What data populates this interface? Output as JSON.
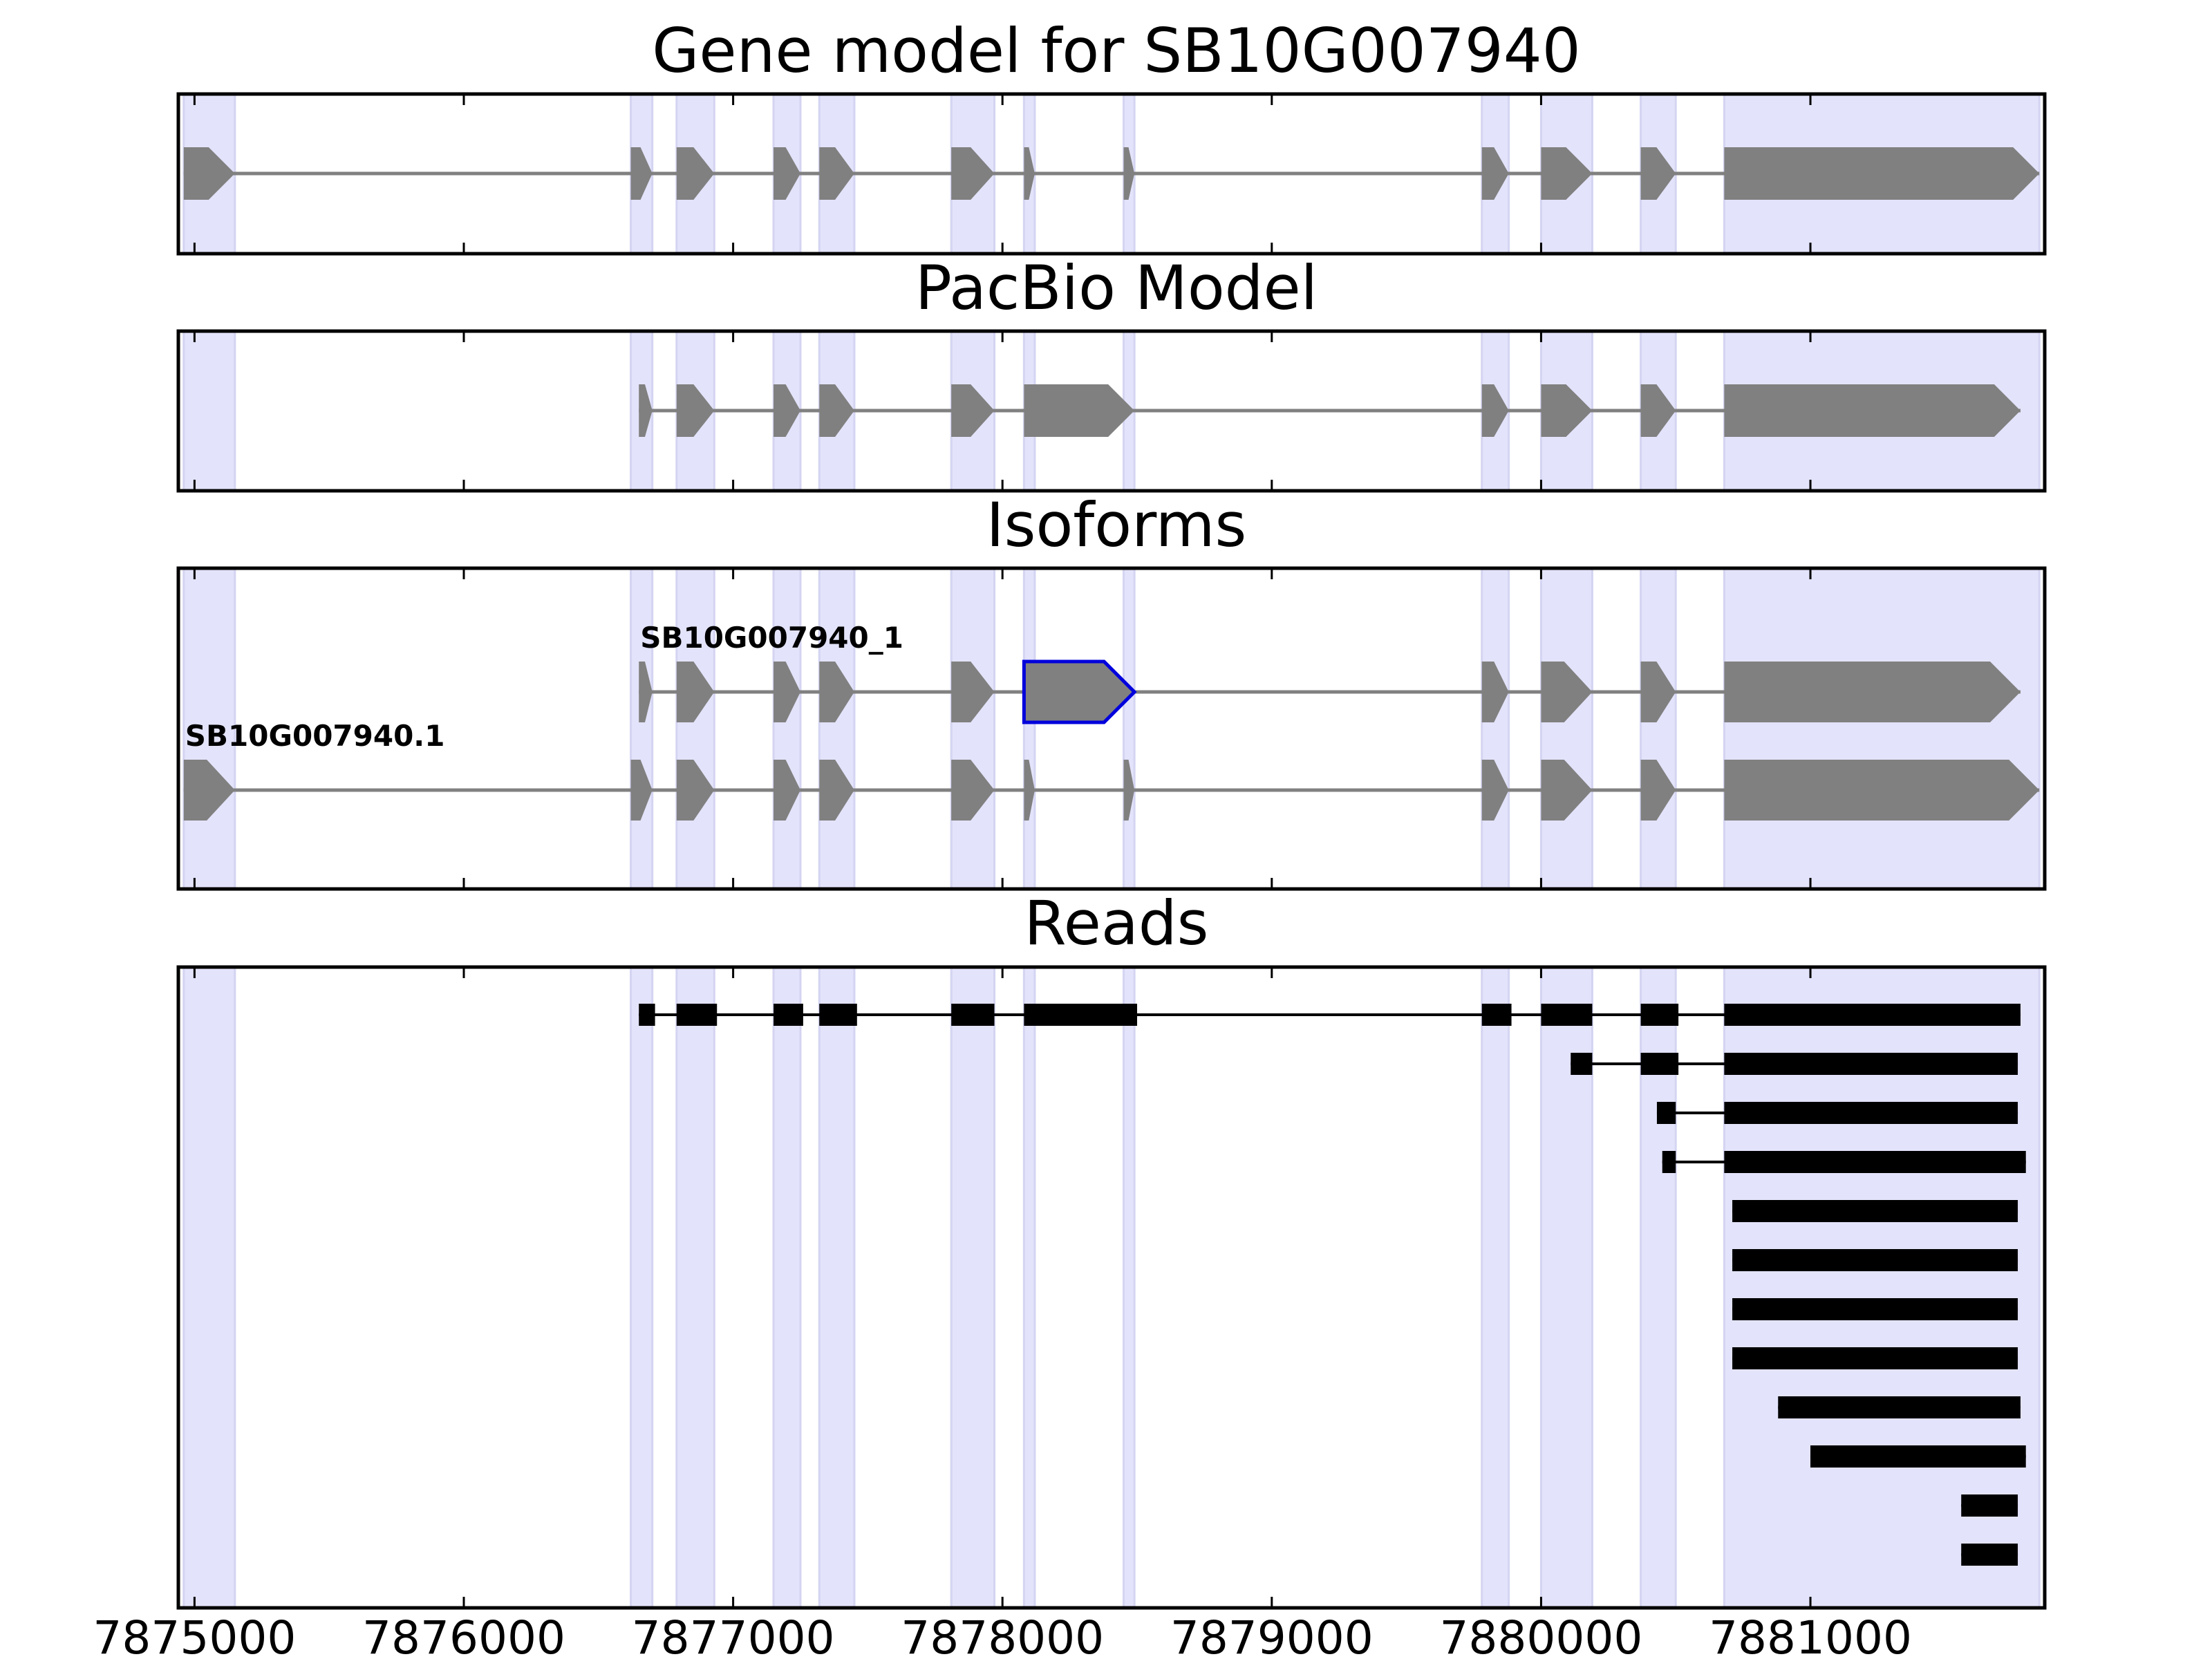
{
  "colors": {
    "exon_band": "#e3e3fb",
    "exon_band_edge": "#d4d4f2",
    "feature_fill": "#808080",
    "intron_line": "#808080",
    "read_fill": "#000000",
    "highlight_outline": "#0000dd",
    "frame": "#000000"
  },
  "chart_data": {
    "type": "gene-structure",
    "x_range": [
      7874940,
      7881870
    ],
    "x_ticks": [
      {
        "value": 7875000,
        "label": "7875000"
      },
      {
        "value": 7876000,
        "label": "7876000"
      },
      {
        "value": 7877000,
        "label": "7877000"
      },
      {
        "value": 7878000,
        "label": "7878000"
      },
      {
        "value": 7879000,
        "label": "7879000"
      },
      {
        "value": 7880000,
        "label": "7880000"
      },
      {
        "value": 7881000,
        "label": "7881000"
      }
    ],
    "exon_bands": [
      [
        7874960,
        7875150
      ],
      [
        7876620,
        7876700
      ],
      [
        7876790,
        7876930
      ],
      [
        7877150,
        7877250
      ],
      [
        7877320,
        7877450
      ],
      [
        7877810,
        7877970
      ],
      [
        7878080,
        7878120
      ],
      [
        7878450,
        7878490
      ],
      [
        7879780,
        7879880
      ],
      [
        7880000,
        7880190
      ],
      [
        7880370,
        7880500
      ],
      [
        7880680,
        7881850
      ]
    ],
    "panels": [
      {
        "title": "Gene model for SB10G007940",
        "kind": "gene",
        "strand": "+",
        "tracks": [
          {
            "label": "",
            "highlight_exon": null,
            "exons": [
              [
                7874960,
                7875150
              ],
              [
                7876620,
                7876700
              ],
              [
                7876790,
                7876930
              ],
              [
                7877150,
                7877250
              ],
              [
                7877320,
                7877450
              ],
              [
                7877810,
                7877970
              ],
              [
                7878080,
                7878120
              ],
              [
                7878450,
                7878490
              ],
              [
                7879780,
                7879880
              ],
              [
                7880000,
                7880190
              ],
              [
                7880370,
                7880500
              ],
              [
                7880680,
                7881850
              ]
            ]
          }
        ]
      },
      {
        "title": "PacBio Model",
        "kind": "gene",
        "strand": "+",
        "tracks": [
          {
            "label": "",
            "highlight_exon": null,
            "exons": [
              [
                7876650,
                7876700
              ],
              [
                7876790,
                7876930
              ],
              [
                7877150,
                7877250
              ],
              [
                7877320,
                7877450
              ],
              [
                7877810,
                7877970
              ],
              [
                7878080,
                7878490
              ],
              [
                7879780,
                7879880
              ],
              [
                7880000,
                7880190
              ],
              [
                7880370,
                7880500
              ],
              [
                7880680,
                7881780
              ]
            ]
          }
        ]
      },
      {
        "title": "Isoforms",
        "kind": "gene",
        "strand": "+",
        "tracks": [
          {
            "label": "SB10G007940_1",
            "highlight_exon": 5,
            "exons": [
              [
                7876650,
                7876700
              ],
              [
                7876790,
                7876930
              ],
              [
                7877150,
                7877250
              ],
              [
                7877320,
                7877450
              ],
              [
                7877810,
                7877970
              ],
              [
                7878080,
                7878490
              ],
              [
                7879780,
                7879880
              ],
              [
                7880000,
                7880190
              ],
              [
                7880370,
                7880500
              ],
              [
                7880680,
                7881780
              ]
            ]
          },
          {
            "label": "SB10G007940.1",
            "highlight_exon": null,
            "exons": [
              [
                7874960,
                7875150
              ],
              [
                7876620,
                7876700
              ],
              [
                7876790,
                7876930
              ],
              [
                7877150,
                7877250
              ],
              [
                7877320,
                7877450
              ],
              [
                7877810,
                7877970
              ],
              [
                7878080,
                7878120
              ],
              [
                7878450,
                7878490
              ],
              [
                7879780,
                7879880
              ],
              [
                7880000,
                7880190
              ],
              [
                7880370,
                7880500
              ],
              [
                7880680,
                7881850
              ]
            ]
          }
        ]
      },
      {
        "title": "Reads",
        "kind": "reads",
        "tracks": [
          {
            "exons": [
              [
                7876650,
                7876710
              ],
              [
                7876790,
                7876940
              ],
              [
                7877150,
                7877260
              ],
              [
                7877320,
                7877460
              ],
              [
                7877810,
                7877970
              ],
              [
                7878080,
                7878500
              ],
              [
                7879780,
                7879890
              ],
              [
                7880000,
                7880190
              ],
              [
                7880370,
                7880510
              ],
              [
                7880680,
                7881780
              ]
            ]
          },
          {
            "exons": [
              [
                7880110,
                7880190
              ],
              [
                7880370,
                7880510
              ],
              [
                7880680,
                7881770
              ]
            ]
          },
          {
            "exons": [
              [
                7880430,
                7880500
              ],
              [
                7880680,
                7881770
              ]
            ]
          },
          {
            "exons": [
              [
                7880450,
                7880500
              ],
              [
                7880680,
                7881800
              ]
            ]
          },
          {
            "exons": [
              [
                7880710,
                7881770
              ]
            ]
          },
          {
            "exons": [
              [
                7880710,
                7881770
              ]
            ]
          },
          {
            "exons": [
              [
                7880710,
                7881770
              ]
            ]
          },
          {
            "exons": [
              [
                7880710,
                7881770
              ]
            ]
          },
          {
            "exons": [
              [
                7880880,
                7881780
              ]
            ]
          },
          {
            "exons": [
              [
                7881000,
                7881800
              ]
            ]
          },
          {
            "exons": [
              [
                7881560,
                7881770
              ]
            ]
          },
          {
            "exons": [
              [
                7881560,
                7881770
              ]
            ]
          }
        ]
      }
    ]
  }
}
